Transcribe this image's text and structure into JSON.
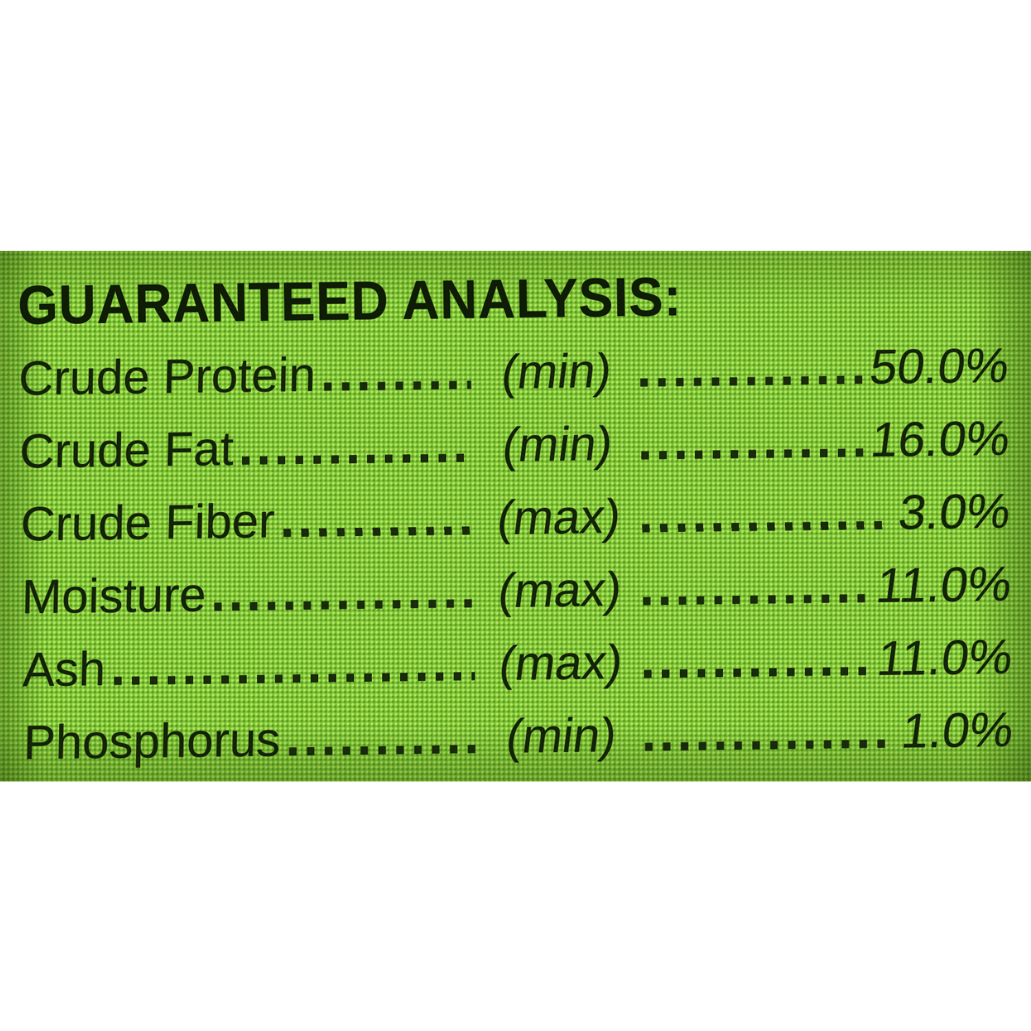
{
  "label": {
    "title": "GUARANTEED ANALYSIS:",
    "rows": [
      {
        "name": "Crude Protein",
        "qualifier": "(min)",
        "value": "50.0%"
      },
      {
        "name": "Crude Fat",
        "qualifier": "(min)",
        "value": "16.0%"
      },
      {
        "name": "Crude Fiber",
        "qualifier": "(max)",
        "value": "3.0%"
      },
      {
        "name": "Moisture",
        "qualifier": "(max)",
        "value": "11.0%"
      },
      {
        "name": "Ash",
        "qualifier": "(max)",
        "value": "11.0%"
      },
      {
        "name": "Phosphorus",
        "qualifier": "(min)",
        "value": "1.0%"
      }
    ],
    "colors": {
      "label_green": "#7cc433",
      "text": "#142408",
      "page_background": "#ffffff"
    }
  }
}
